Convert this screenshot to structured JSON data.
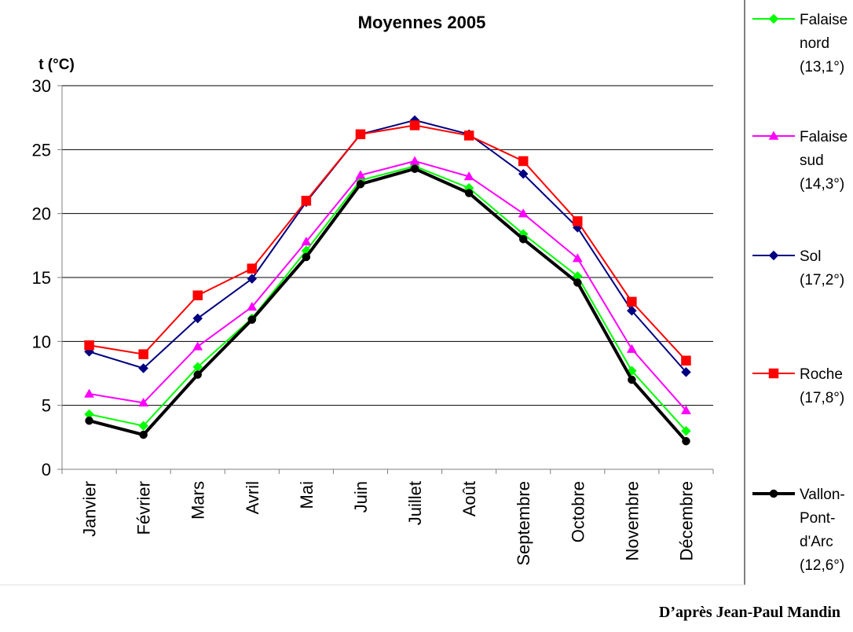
{
  "chart_data": {
    "type": "line",
    "title": "Moyennes 2005",
    "ylabel": "t (°C)",
    "xlabel": "",
    "ylim": [
      0,
      30
    ],
    "yticks": [
      0,
      5,
      10,
      15,
      20,
      25,
      30
    ],
    "grid": true,
    "legend_position": "right",
    "categories": [
      "Janvier",
      "Février",
      "Mars",
      "Avril",
      "Mai",
      "Juin",
      "Juillet",
      "Août",
      "Septembre",
      "Octobre",
      "Novembre",
      "Décembre"
    ],
    "series": [
      {
        "name": "Falaise nord (13,1°)",
        "legend_lines": [
          "Falaise",
          "nord",
          "(13,1°)"
        ],
        "color": "#00ff00",
        "marker": "diamond",
        "line_width": 2,
        "values": [
          4.3,
          3.4,
          8.0,
          11.8,
          17.1,
          22.6,
          23.7,
          22.0,
          18.4,
          15.1,
          7.7,
          3.0
        ]
      },
      {
        "name": "Falaise sud (14,3°)",
        "legend_lines": [
          "Falaise",
          "sud",
          "(14,3°)"
        ],
        "color": "#ff00ff",
        "marker": "triangle",
        "line_width": 2,
        "values": [
          5.9,
          5.2,
          9.6,
          12.7,
          17.8,
          23.0,
          24.1,
          22.9,
          20.0,
          16.5,
          9.4,
          4.6
        ]
      },
      {
        "name": "Sol (17,2°)",
        "legend_lines": [
          "Sol",
          "(17,2°)"
        ],
        "color": "#000080",
        "marker": "diamond",
        "line_width": 2,
        "values": [
          9.2,
          7.9,
          11.8,
          14.9,
          20.9,
          26.2,
          27.3,
          26.2,
          23.1,
          18.9,
          12.4,
          7.6
        ]
      },
      {
        "name": "Roche (17,8°)",
        "legend_lines": [
          "Roche",
          "(17,8°)"
        ],
        "color": "#ff0000",
        "marker": "square",
        "line_width": 2,
        "values": [
          9.7,
          9.0,
          13.6,
          15.7,
          21.0,
          26.2,
          26.9,
          26.1,
          24.1,
          19.4,
          13.1,
          8.5
        ]
      },
      {
        "name": "Vallon-Pont-d'Arc (12,6°)",
        "legend_lines": [
          "Vallon-",
          "Pont-",
          "d'Arc",
          "(12,6°)"
        ],
        "color": "#000000",
        "marker": "circle",
        "line_width": 4,
        "values": [
          3.8,
          2.7,
          7.4,
          11.7,
          16.6,
          22.3,
          23.5,
          21.6,
          18.0,
          14.6,
          7.0,
          2.2
        ]
      }
    ]
  },
  "credit": "D’après Jean-Paul Mandin"
}
